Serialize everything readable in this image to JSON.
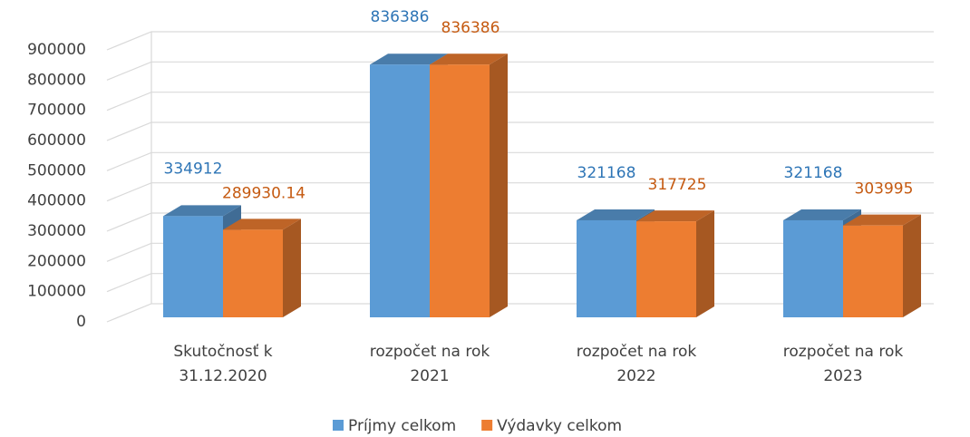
{
  "chart_data": {
    "type": "bar3d",
    "categories": [
      "Skutočnosť k 31.12.2020",
      "rozpočet na rok 2021",
      "rozpočet na rok 2022",
      "rozpočet na rok 2023"
    ],
    "series": [
      {
        "name": "Príjmy celkom",
        "color": "#5b9bd5",
        "label_color": "#2e75b6",
        "values": [
          334912,
          836386,
          321168,
          321168
        ]
      },
      {
        "name": "Výdavky celkom",
        "color": "#ed7d31",
        "label_color": "#c55a11",
        "values": [
          289930.14,
          836386,
          317725,
          303995
        ]
      }
    ],
    "ylim": [
      0,
      900000
    ],
    "yticks": [
      0,
      100000,
      200000,
      300000,
      400000,
      500000,
      600000,
      700000,
      800000,
      900000
    ],
    "grid": true,
    "legend": "bottom"
  }
}
